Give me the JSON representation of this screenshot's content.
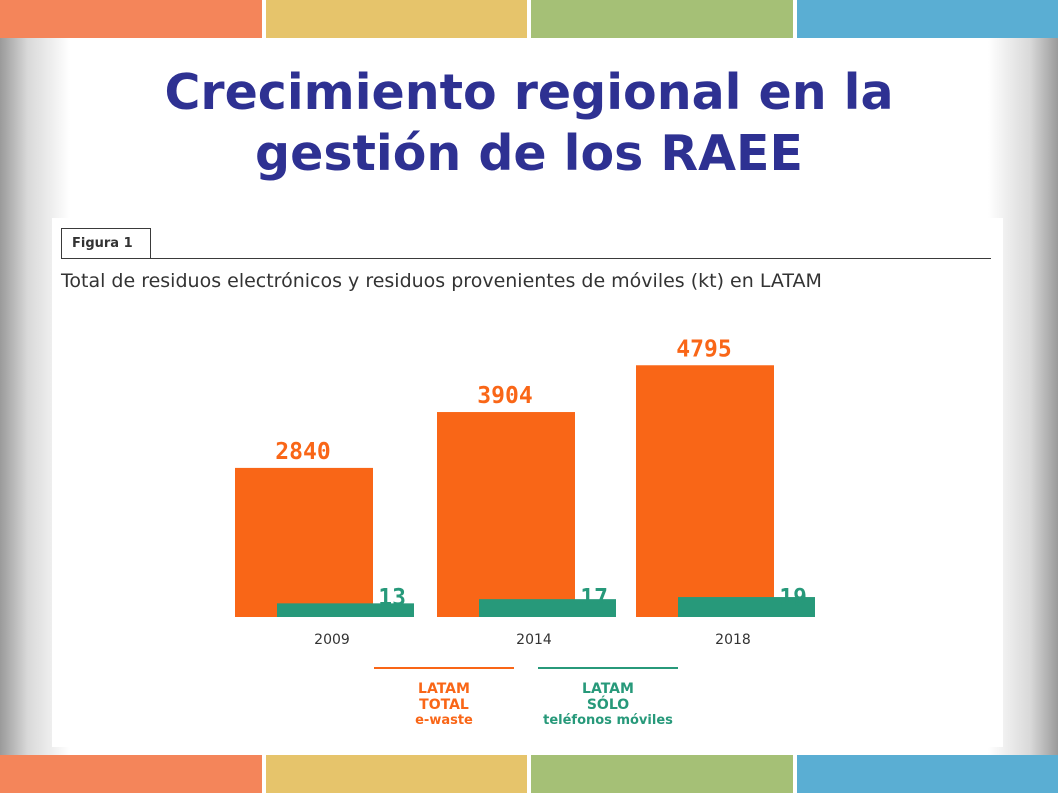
{
  "slide": {
    "title": "Crecimiento regional en la gestión de los RAEE",
    "stripe_colors": [
      "#f4855a",
      "#e6c46b",
      "#a5c076",
      "#5aaed3"
    ]
  },
  "figure": {
    "label": "Figura 1",
    "subtitle": "Total de residuos electrónicos y residuos provenientes de móviles (kt) en LATAM"
  },
  "chart_data": {
    "type": "bar",
    "title": "Total de residuos electrónicos y residuos provenientes de móviles (kt) en LATAM",
    "categories": [
      "2009",
      "2014",
      "2018"
    ],
    "series": [
      {
        "name": "LATAM TOTAL e-waste",
        "values": [
          2840,
          3904,
          4795
        ],
        "color": "#f96617"
      },
      {
        "name": "LATAM SÓLO teléfonos móviles",
        "values": [
          13,
          17,
          19
        ],
        "color": "#27997a"
      }
    ],
    "value_labels": {
      "total": [
        "2840",
        "3904",
        "4795"
      ],
      "mobile": [
        "13",
        "17",
        "19"
      ]
    },
    "grid": false,
    "legend_position": "bottom"
  },
  "legend": {
    "total": {
      "line1": "LATAM",
      "line2": "TOTAL",
      "line3": "e-waste"
    },
    "mobile": {
      "line1": "LATAM",
      "line2": "SÓLO",
      "line3": "teléfonos móviles"
    }
  }
}
